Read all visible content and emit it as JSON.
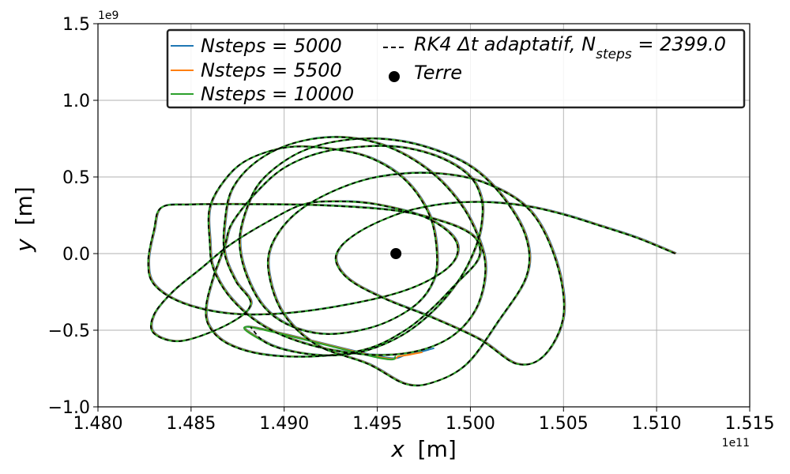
{
  "chart_data": {
    "type": "line",
    "xlabel_var": "x",
    "xlabel_unit": "[m]",
    "ylabel_var": "y",
    "ylabel_unit": "[m]",
    "x_offset_label": "1e11",
    "y_offset_label": "1e9",
    "xlim": [
      1.48,
      1.515
    ],
    "ylim": [
      -1.0,
      1.5
    ],
    "x_ticks": [
      "1.480",
      "1.485",
      "1.490",
      "1.495",
      "1.500",
      "1.505",
      "1.510",
      "1.515"
    ],
    "x_tick_values": [
      1.48,
      1.485,
      1.49,
      1.495,
      1.5,
      1.505,
      1.51,
      1.515
    ],
    "y_ticks": [
      "−1.0",
      "−0.5",
      "0.0",
      "0.5",
      "1.0",
      "1.5"
    ],
    "y_tick_values": [
      -1.0,
      -0.5,
      0.0,
      0.5,
      1.0,
      1.5
    ],
    "grid": true,
    "legend_position": "top",
    "colors": {
      "n5000": "#1f77b4",
      "n5500": "#ff7f0e",
      "n10000": "#2ca02c",
      "rk4": "#000000"
    },
    "legend": {
      "n5000": "Nsteps = 5000",
      "n5500": "Nsteps = 5500",
      "n10000": "Nsteps = 10000",
      "rk4_prefix": "RK4 Δt adaptatif, N",
      "rk4_sub": "steps",
      "rk4_suffix": " = 2399.0",
      "earth": "Terre"
    },
    "earth_point": {
      "x": 1.496,
      "y": 0.0
    },
    "trajectory": [
      [
        1.511,
        0.0
      ],
      [
        1.509,
        0.1
      ],
      [
        1.507,
        0.18
      ],
      [
        1.505,
        0.255
      ],
      [
        1.503,
        0.31
      ],
      [
        1.501,
        0.335
      ],
      [
        1.499,
        0.33
      ],
      [
        1.497,
        0.29
      ],
      [
        1.4955,
        0.23
      ],
      [
        1.494,
        0.14
      ],
      [
        1.493,
        0.04
      ],
      [
        1.4928,
        -0.06
      ],
      [
        1.4936,
        -0.18
      ],
      [
        1.4955,
        -0.3
      ],
      [
        1.498,
        -0.42
      ],
      [
        1.5005,
        -0.56
      ],
      [
        1.5025,
        -0.72
      ],
      [
        1.504,
        -0.66
      ],
      [
        1.505,
        -0.4
      ],
      [
        1.5046,
        -0.05
      ],
      [
        1.5032,
        0.28
      ],
      [
        1.5008,
        0.46
      ],
      [
        1.498,
        0.525
      ],
      [
        1.495,
        0.5
      ],
      [
        1.4925,
        0.4
      ],
      [
        1.4905,
        0.25
      ],
      [
        1.4893,
        0.05
      ],
      [
        1.4892,
        -0.15
      ],
      [
        1.49,
        -0.4
      ],
      [
        1.4918,
        -0.6
      ],
      [
        1.4945,
        -0.72
      ],
      [
        1.4965,
        -0.85
      ],
      [
        1.498,
        -0.84
      ],
      [
        1.4998,
        -0.72
      ],
      [
        1.5015,
        -0.44
      ],
      [
        1.503,
        -0.15
      ],
      [
        1.503,
        0.1
      ],
      [
        1.5018,
        0.36
      ],
      [
        1.5,
        0.57
      ],
      [
        1.4975,
        0.7
      ],
      [
        1.495,
        0.75
      ],
      [
        1.4925,
        0.725
      ],
      [
        1.4905,
        0.64
      ],
      [
        1.4888,
        0.48
      ],
      [
        1.488,
        0.3
      ],
      [
        1.4876,
        0.08
      ],
      [
        1.488,
        -0.15
      ],
      [
        1.489,
        -0.36
      ],
      [
        1.4905,
        -0.48
      ],
      [
        1.4925,
        -0.525
      ],
      [
        1.495,
        -0.47
      ],
      [
        1.497,
        -0.34
      ],
      [
        1.498,
        -0.18
      ],
      [
        1.4982,
        0.0
      ],
      [
        1.4978,
        0.25
      ],
      [
        1.4965,
        0.48
      ],
      [
        1.4945,
        0.63
      ],
      [
        1.492,
        0.69
      ],
      [
        1.49,
        0.69
      ],
      [
        1.488,
        0.61
      ],
      [
        1.4868,
        0.48
      ],
      [
        1.486,
        0.3
      ],
      [
        1.486,
        0.08
      ],
      [
        1.4862,
        -0.1
      ],
      [
        1.4872,
        -0.3
      ],
      [
        1.489,
        -0.48
      ],
      [
        1.4915,
        -0.6
      ],
      [
        1.4945,
        -0.66
      ],
      [
        1.497,
        -0.64
      ],
      [
        1.499,
        -0.54
      ],
      [
        1.5003,
        -0.36
      ],
      [
        1.5008,
        -0.12
      ],
      [
        1.5005,
        0.08
      ],
      [
        1.4995,
        0.32
      ],
      [
        1.4978,
        0.54
      ],
      [
        1.4955,
        0.7
      ],
      [
        1.493,
        0.76
      ],
      [
        1.4905,
        0.72
      ],
      [
        1.4885,
        0.6
      ],
      [
        1.4872,
        0.42
      ],
      [
        1.4868,
        0.2
      ],
      [
        1.4868,
        0.0
      ],
      [
        1.4874,
        -0.18
      ],
      [
        1.4882,
        -0.33
      ],
      [
        1.487,
        -0.46
      ],
      [
        1.4845,
        -0.57
      ],
      [
        1.483,
        -0.52
      ],
      [
        1.483,
        -0.4
      ],
      [
        1.484,
        -0.25
      ],
      [
        1.4855,
        -0.1
      ],
      [
        1.487,
        0.05
      ],
      [
        1.489,
        0.2
      ],
      [
        1.491,
        0.32
      ],
      [
        1.493,
        0.34
      ],
      [
        1.495,
        0.32
      ],
      [
        1.4975,
        0.24
      ],
      [
        1.499,
        0.12
      ],
      [
        1.4993,
        0.0
      ],
      [
        1.4985,
        -0.12
      ],
      [
        1.4965,
        -0.24
      ],
      [
        1.4935,
        -0.33
      ],
      [
        1.49,
        -0.39
      ],
      [
        1.487,
        -0.39
      ],
      [
        1.4845,
        -0.32
      ],
      [
        1.483,
        -0.2
      ],
      [
        1.4827,
        -0.05
      ],
      [
        1.483,
        0.15
      ],
      [
        1.4834,
        0.3
      ],
      [
        1.485,
        0.32
      ],
      [
        1.488,
        0.322
      ],
      [
        1.492,
        0.315
      ],
      [
        1.496,
        0.28
      ],
      [
        1.4985,
        0.21
      ],
      [
        1.5,
        0.13
      ],
      [
        1.5005,
        0.04
      ],
      [
        1.5003,
        -0.06
      ],
      [
        1.4992,
        -0.2
      ],
      [
        1.498,
        -0.35
      ],
      [
        1.4965,
        -0.5
      ],
      [
        1.4945,
        -0.62
      ],
      [
        1.4918,
        -0.67
      ],
      [
        1.489,
        -0.66
      ],
      [
        1.487,
        -0.59
      ],
      [
        1.486,
        -0.48
      ],
      [
        1.4858,
        -0.35
      ],
      [
        1.4862,
        -0.15
      ],
      [
        1.4868,
        0.05
      ],
      [
        1.4872,
        0.2
      ],
      [
        1.4885,
        0.4
      ],
      [
        1.49,
        0.56
      ],
      [
        1.492,
        0.66
      ],
      [
        1.4945,
        0.7
      ],
      [
        1.4965,
        0.69
      ],
      [
        1.4985,
        0.62
      ],
      [
        1.5,
        0.5
      ],
      [
        1.5006,
        0.35
      ],
      [
        1.5006,
        0.2
      ],
      [
        1.5003,
        0.05
      ],
      [
        1.4995,
        -0.15
      ],
      [
        1.4982,
        -0.35
      ],
      [
        1.4965,
        -0.52
      ],
      [
        1.4945,
        -0.63
      ],
      [
        1.4925,
        -0.665
      ],
      [
        1.4905,
        -0.64
      ],
      [
        1.489,
        -0.58
      ],
      [
        1.4882,
        -0.48
      ]
    ],
    "tail_n5000": [
      [
        1.495,
        -0.672
      ],
      [
        1.4965,
        -0.665
      ],
      [
        1.498,
        -0.62
      ]
    ],
    "tail_n5500": [
      [
        1.495,
        -0.675
      ],
      [
        1.4962,
        -0.67
      ],
      [
        1.4974,
        -0.645
      ]
    ],
    "tail_n10000": [
      [
        1.495,
        -0.678
      ],
      [
        1.496,
        -0.672
      ]
    ]
  }
}
